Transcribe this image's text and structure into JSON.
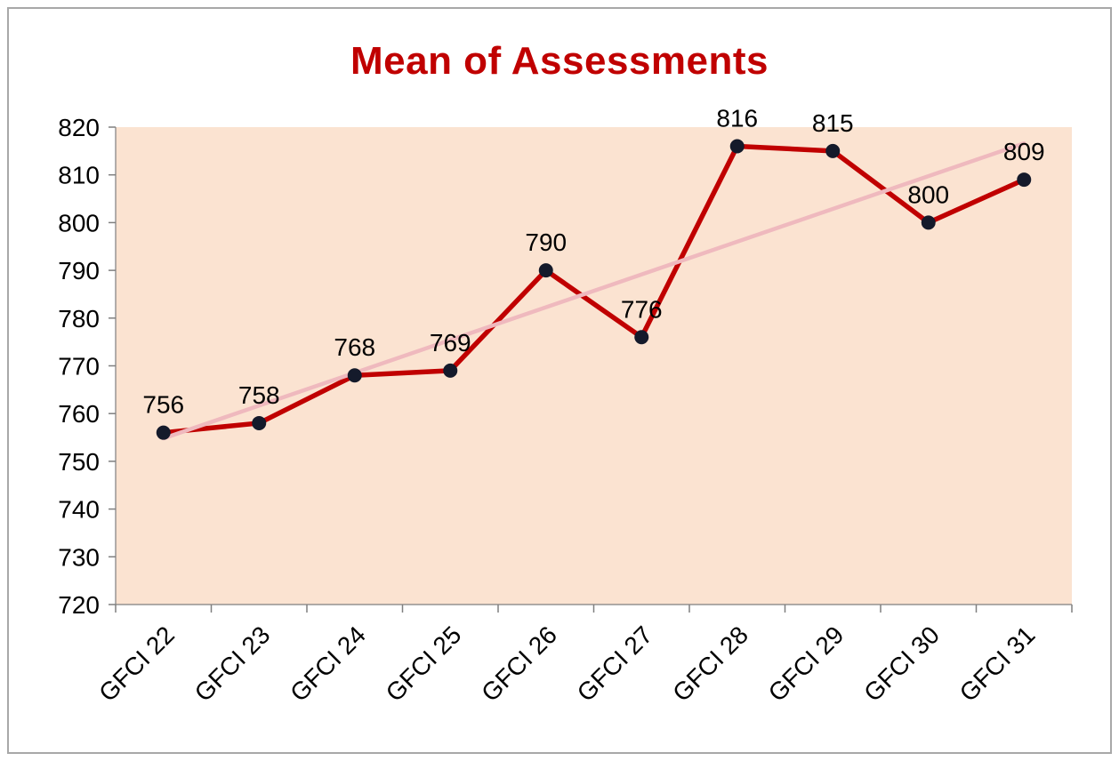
{
  "chart_data": {
    "type": "line",
    "title": "Mean of Assessments",
    "categories": [
      "GFCI 22",
      "GFCI 23",
      "GFCI 24",
      "GFCI 25",
      "GFCI 26",
      "GFCI 27",
      "GFCI 28",
      "GFCI 29",
      "GFCI 30",
      "GFCI 31"
    ],
    "series": [
      {
        "name": "Mean of Assessments",
        "values": [
          756,
          758,
          768,
          769,
          790,
          776,
          816,
          815,
          800,
          809
        ]
      }
    ],
    "data_labels": [
      756,
      758,
      768,
      769,
      790,
      776,
      816,
      815,
      800,
      809
    ],
    "trendline": {
      "type": "linear"
    },
    "xlabel": "",
    "ylabel": "",
    "ylim": [
      720,
      820
    ],
    "ytick_step": 10,
    "grid": false,
    "legend": "none",
    "colors": {
      "title": "#C00000",
      "series_line": "#C00000",
      "marker": "#141A2B",
      "trendline": "#EFB9BE",
      "plot_bg": "#FBE3D1",
      "axis_text": "#000000",
      "axis_line": "#7F7F7F",
      "frame_border": "#A8A8A8"
    }
  }
}
